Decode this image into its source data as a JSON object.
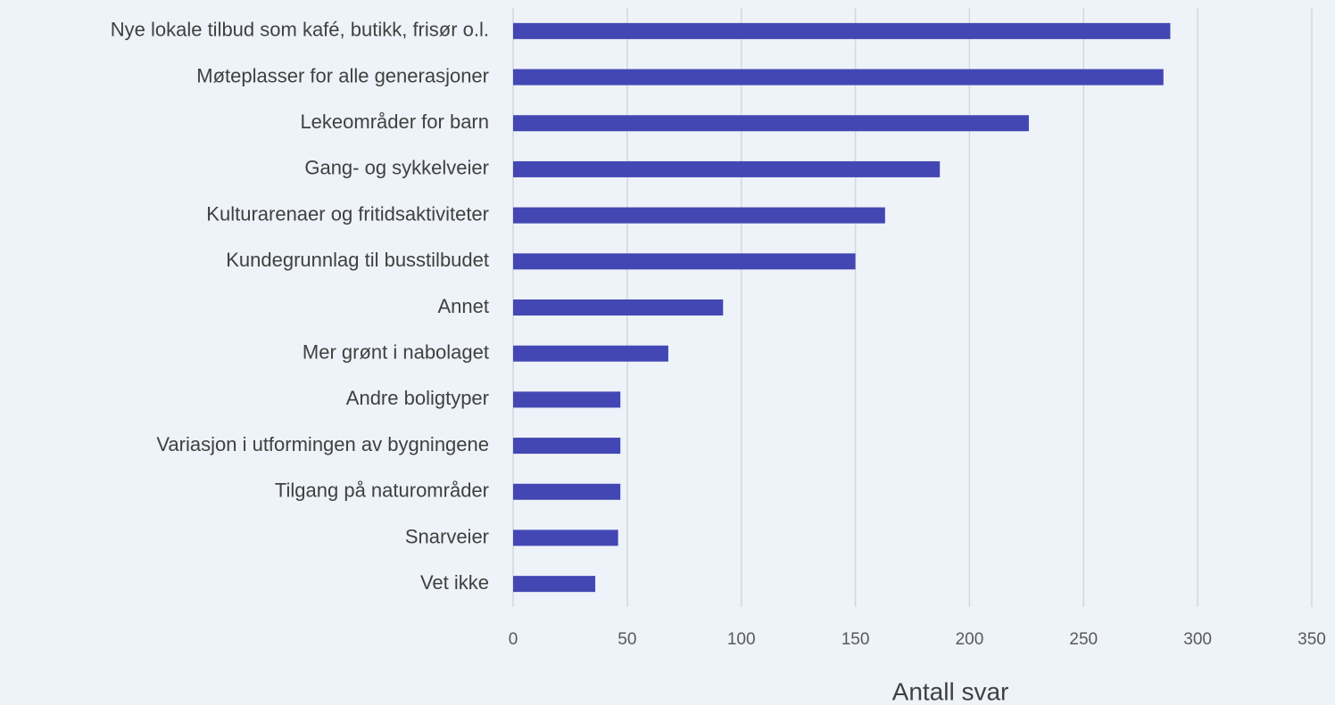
{
  "chart_data": {
    "type": "bar",
    "orientation": "horizontal",
    "x_label": "Antall svar",
    "categories": [
      "Nye lokale tilbud som kafé, butikk, frisør o.l.",
      "Møteplasser for alle generasjoner",
      "Lekeområder for barn",
      "Gang- og sykkelveier",
      "Kulturarenaer og fritidsaktiviteter",
      "Kundegrunnlag til busstilbudet",
      "Annet ",
      "Mer grønt i nabolaget",
      "Andre boligtyper",
      "Variasjon i utformingen av bygningene",
      "Tilgang på naturområder",
      "Snarveier",
      "Vet ikke"
    ],
    "values": [
      288,
      285,
      226,
      187,
      163,
      150,
      92,
      68,
      47,
      47,
      47,
      46,
      36
    ],
    "color": "#4347b3",
    "xlim": [
      0,
      350
    ],
    "xticks": [
      0,
      50,
      100,
      150,
      200,
      250,
      300,
      350
    ],
    "grid": true
  }
}
